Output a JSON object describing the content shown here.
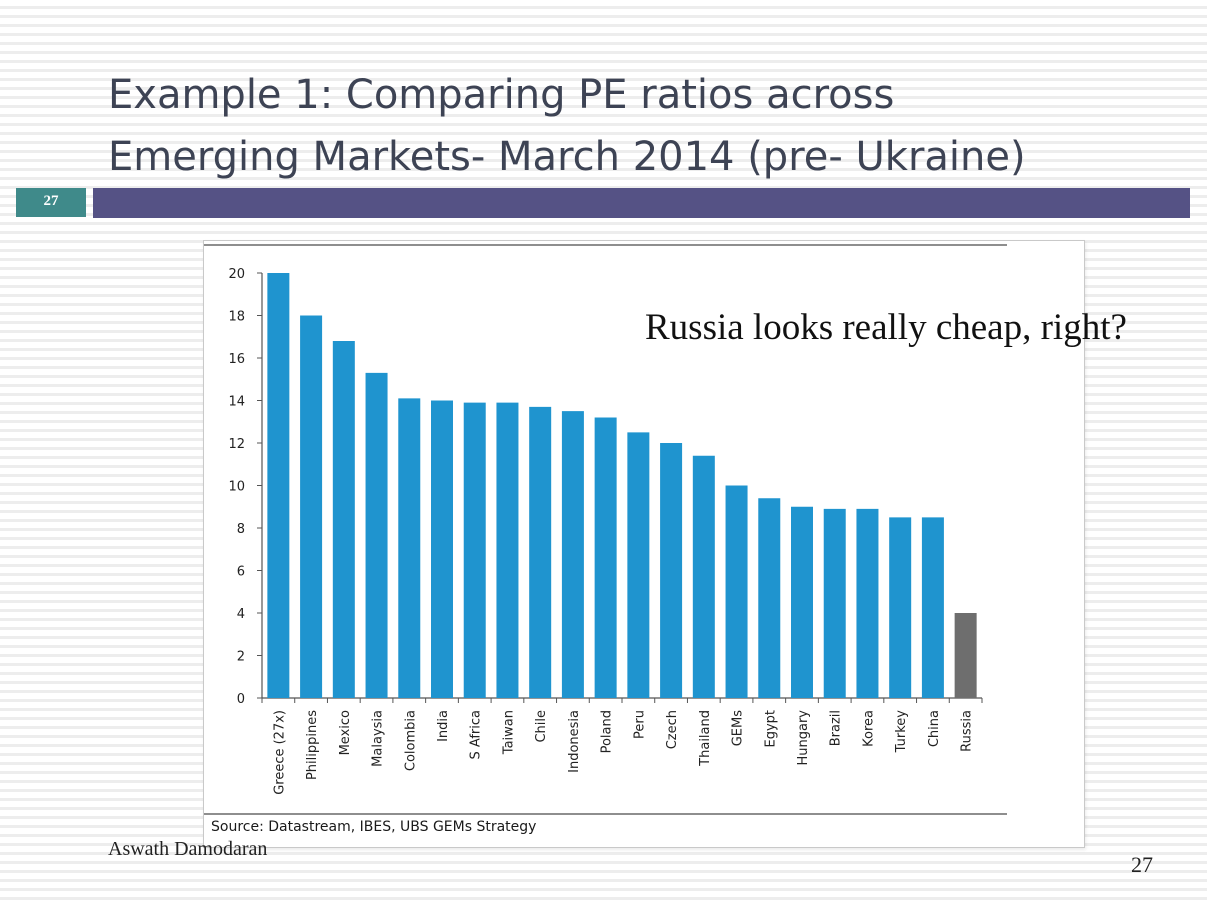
{
  "slide": {
    "title_line1": "Example 1: Comparing PE ratios across",
    "title_line2": "Emerging Markets- March 2014 (pre- Ukraine)",
    "slide_number_badge": "27",
    "author": "Aswath Damodaran",
    "page_number": "27",
    "accent_color": "#555285",
    "badge_color": "#3f8a8a"
  },
  "chart_data": {
    "type": "bar",
    "categories": [
      "Greece (27x)",
      "Philippines",
      "Mexico",
      "Malaysia",
      "Colombia",
      "India",
      "S Africa",
      "Taiwan",
      "Chile",
      "Indonesia",
      "Poland",
      "Peru",
      "Czech",
      "Thailand",
      "GEMs",
      "Egypt",
      "Hungary",
      "Brazil",
      "Korea",
      "Turkey",
      "China",
      "Russia"
    ],
    "values": [
      20,
      18,
      16.8,
      15.3,
      14.1,
      14.0,
      13.9,
      13.9,
      13.7,
      13.5,
      13.2,
      12.5,
      12.0,
      11.4,
      10.0,
      9.4,
      9.0,
      8.9,
      8.9,
      8.5,
      8.5,
      4.0
    ],
    "bar_colors": [
      "#1f94cf",
      "#1f94cf",
      "#1f94cf",
      "#1f94cf",
      "#1f94cf",
      "#1f94cf",
      "#1f94cf",
      "#1f94cf",
      "#1f94cf",
      "#1f94cf",
      "#1f94cf",
      "#1f94cf",
      "#1f94cf",
      "#1f94cf",
      "#1f94cf",
      "#1f94cf",
      "#1f94cf",
      "#1f94cf",
      "#1f94cf",
      "#1f94cf",
      "#1f94cf",
      "#6e6e6e"
    ],
    "ylim": [
      0,
      20
    ],
    "yticks": [
      0,
      2,
      4,
      6,
      8,
      10,
      12,
      14,
      16,
      18,
      20
    ],
    "xlabel": "",
    "ylabel": "",
    "grid": false,
    "legend": "none",
    "annotation": "Russia looks really cheap, right?",
    "source": "Source:  Datastream, IBES, UBS GEMs Strategy"
  }
}
